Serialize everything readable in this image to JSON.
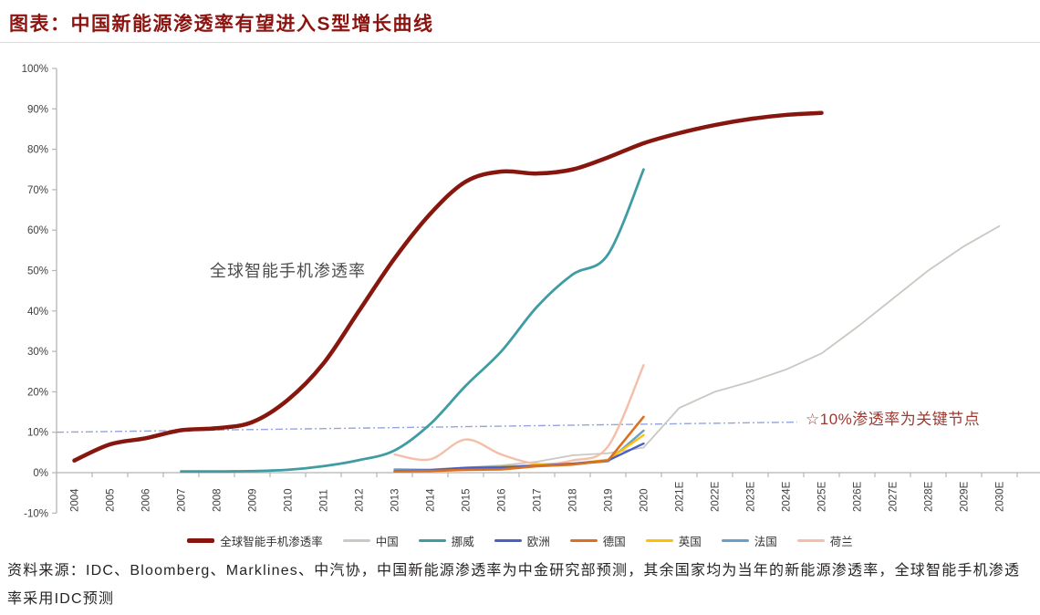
{
  "title": "图表：中国新能源渗透率有望进入S型增长曲线",
  "annotations": {
    "smartphone_label": "全球智能手机渗透率",
    "threshold_label": "☆10%渗透率为关键节点"
  },
  "source_note": "资料来源：IDC、Bloomberg、Marklines、中汽协，中国新能源渗透率为中金研究部预测，其余国家均为当年的新能源渗透率，全球智能手机渗透率采用IDC预测",
  "chart_data": {
    "type": "line",
    "title": "图表：中国新能源渗透率有望进入S型增长曲线",
    "xlabel": "",
    "ylabel": "",
    "ylim": [
      -10,
      100
    ],
    "grid": false,
    "legend_position": "bottom",
    "axis_color": "#b5b5b5",
    "tick_label_color": "#404040",
    "y_tick_labels": [
      "100%",
      "90%",
      "80%",
      "70%",
      "60%",
      "50%",
      "40%",
      "30%",
      "20%",
      "10%",
      "0%",
      "-10%"
    ],
    "x_categories": [
      "2004",
      "2005",
      "2006",
      "2007",
      "2008",
      "2009",
      "2010",
      "2011",
      "2012",
      "2013",
      "2014",
      "2015",
      "2016",
      "2017",
      "2018",
      "2019",
      "2020",
      "2021E",
      "2022E",
      "2023E",
      "2024E",
      "2025E",
      "2026E",
      "2027E",
      "2028E",
      "2029E",
      "2030E"
    ],
    "threshold_line": {
      "label": "☆10%渗透率为关键节点",
      "color": "#92A5DC",
      "style": "dash-dot",
      "from": {
        "category": "2004",
        "value": 10
      },
      "to": {
        "category": "2024E",
        "value": 12.5
      }
    },
    "series": [
      {
        "name": "全球智能手机渗透率",
        "color": "#87160F",
        "width": 4.5,
        "smooth": true,
        "points": [
          [
            "2004",
            3
          ],
          [
            "2005",
            7
          ],
          [
            "2006",
            8.5
          ],
          [
            "2007",
            10.5
          ],
          [
            "2008",
            11
          ],
          [
            "2009",
            12.5
          ],
          [
            "2010",
            18
          ],
          [
            "2011",
            27
          ],
          [
            "2012",
            40
          ],
          [
            "2013",
            53
          ],
          [
            "2014",
            64
          ],
          [
            "2015",
            72
          ],
          [
            "2016",
            74.5
          ],
          [
            "2017",
            74
          ],
          [
            "2018",
            75
          ],
          [
            "2019",
            78
          ],
          [
            "2020",
            81.5
          ],
          [
            "2021E",
            84
          ],
          [
            "2022E",
            86
          ],
          [
            "2023E",
            87.5
          ],
          [
            "2024E",
            88.5
          ],
          [
            "2025E",
            89
          ]
        ]
      },
      {
        "name": "中国",
        "color": "#C9C8C2",
        "width": 1.8,
        "smooth": false,
        "points": [
          [
            "2013",
            0.3
          ],
          [
            "2014",
            0.8
          ],
          [
            "2015",
            1.3
          ],
          [
            "2016",
            1.8
          ],
          [
            "2017",
            2.7
          ],
          [
            "2018",
            4.3
          ],
          [
            "2019",
            4.8
          ],
          [
            "2020",
            6.2
          ],
          [
            "2021E",
            16
          ],
          [
            "2022E",
            20
          ],
          [
            "2023E",
            22.5
          ],
          [
            "2024E",
            25.5
          ],
          [
            "2025E",
            29.5
          ],
          [
            "2026E",
            36
          ],
          [
            "2027E",
            43
          ],
          [
            "2028E",
            50
          ],
          [
            "2029E",
            56
          ],
          [
            "2030E",
            61
          ]
        ]
      },
      {
        "name": "挪威",
        "color": "#3F9CA3",
        "width": 2.8,
        "smooth": true,
        "points": [
          [
            "2007",
            0.3
          ],
          [
            "2008",
            0.3
          ],
          [
            "2009",
            0.4
          ],
          [
            "2010",
            0.7
          ],
          [
            "2011",
            1.6
          ],
          [
            "2012",
            3.1
          ],
          [
            "2013",
            5.5
          ],
          [
            "2014",
            12
          ],
          [
            "2015",
            21.5
          ],
          [
            "2016",
            30
          ],
          [
            "2017",
            41
          ],
          [
            "2018",
            49
          ],
          [
            "2019",
            54
          ],
          [
            "2020",
            75
          ]
        ]
      },
      {
        "name": "欧洲",
        "color": "#4A5EC4",
        "width": 2.4,
        "smooth": false,
        "points": [
          [
            "2013",
            0.4
          ],
          [
            "2014",
            0.6
          ],
          [
            "2015",
            1.2
          ],
          [
            "2016",
            1.3
          ],
          [
            "2017",
            1.7
          ],
          [
            "2018",
            2.2
          ],
          [
            "2019",
            3.0
          ],
          [
            "2020",
            7.2
          ]
        ]
      },
      {
        "name": "德国",
        "color": "#DC701E",
        "width": 2.6,
        "smooth": false,
        "points": [
          [
            "2013",
            0.3
          ],
          [
            "2014",
            0.4
          ],
          [
            "2015",
            0.7
          ],
          [
            "2016",
            0.8
          ],
          [
            "2017",
            1.6
          ],
          [
            "2018",
            2.0
          ],
          [
            "2019",
            3.0
          ],
          [
            "2020",
            13.8
          ]
        ]
      },
      {
        "name": "英国",
        "color": "#FFC000",
        "width": 2.4,
        "smooth": false,
        "points": [
          [
            "2013",
            0.3
          ],
          [
            "2014",
            0.6
          ],
          [
            "2015",
            1.1
          ],
          [
            "2016",
            1.4
          ],
          [
            "2017",
            1.9
          ],
          [
            "2018",
            2.2
          ],
          [
            "2019",
            3.2
          ],
          [
            "2020",
            9.3
          ]
        ]
      },
      {
        "name": "法国",
        "color": "#6B9DC7",
        "width": 2.4,
        "smooth": false,
        "points": [
          [
            "2013",
            0.8
          ],
          [
            "2014",
            0.7
          ],
          [
            "2015",
            1.2
          ],
          [
            "2016",
            1.5
          ],
          [
            "2017",
            1.8
          ],
          [
            "2018",
            2.1
          ],
          [
            "2019",
            2.8
          ],
          [
            "2020",
            10.4
          ]
        ]
      },
      {
        "name": "荷兰",
        "color": "#F4BFA9",
        "width": 2.4,
        "smooth": true,
        "points": [
          [
            "2013",
            4.5
          ],
          [
            "2014",
            3.3
          ],
          [
            "2015",
            8.2
          ],
          [
            "2016",
            4.5
          ],
          [
            "2017",
            2.2
          ],
          [
            "2018",
            3.0
          ],
          [
            "2019",
            6.5
          ],
          [
            "2020",
            26.6
          ]
        ]
      }
    ]
  }
}
